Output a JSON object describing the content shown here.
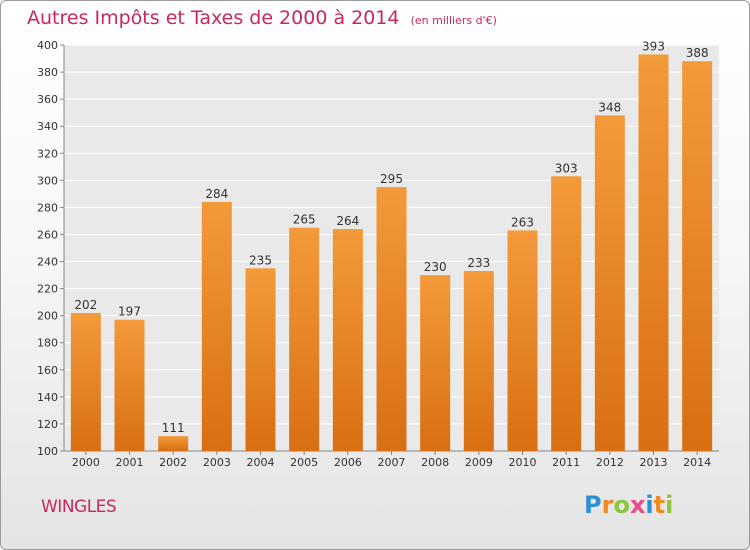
{
  "title": "Autres Impôts et Taxes de 2000 à 2014",
  "subtitle": "(en milliers d'€)",
  "place": "WINGLES",
  "brand": {
    "letters": [
      "P",
      "r",
      "o",
      "x",
      "i",
      "t",
      "i"
    ],
    "colors": [
      "#2e8fd6",
      "#f08a1c",
      "#8cc63f",
      "#e94a8c",
      "#2e8fd6",
      "#f08a1c",
      "#8cc63f"
    ]
  },
  "colors": {
    "bar": "#f39a3a",
    "bar_dark": "#d86f12",
    "text": "#c8285f"
  },
  "chart_data": {
    "type": "bar",
    "categories": [
      "2000",
      "2001",
      "2002",
      "2003",
      "2004",
      "2005",
      "2006",
      "2007",
      "2008",
      "2009",
      "2010",
      "2011",
      "2012",
      "2013",
      "2014"
    ],
    "values": [
      202,
      197,
      111,
      284,
      235,
      265,
      264,
      295,
      230,
      233,
      263,
      303,
      348,
      393,
      388
    ],
    "title": "Autres Impôts et Taxes de 2000 à 2014",
    "subtitle": "(en milliers d'€)",
    "ylim": [
      100,
      400
    ],
    "yticks": [
      100,
      120,
      140,
      160,
      180,
      200,
      220,
      240,
      260,
      280,
      300,
      320,
      340,
      360,
      380,
      400
    ],
    "grid": true,
    "legend": "none"
  }
}
